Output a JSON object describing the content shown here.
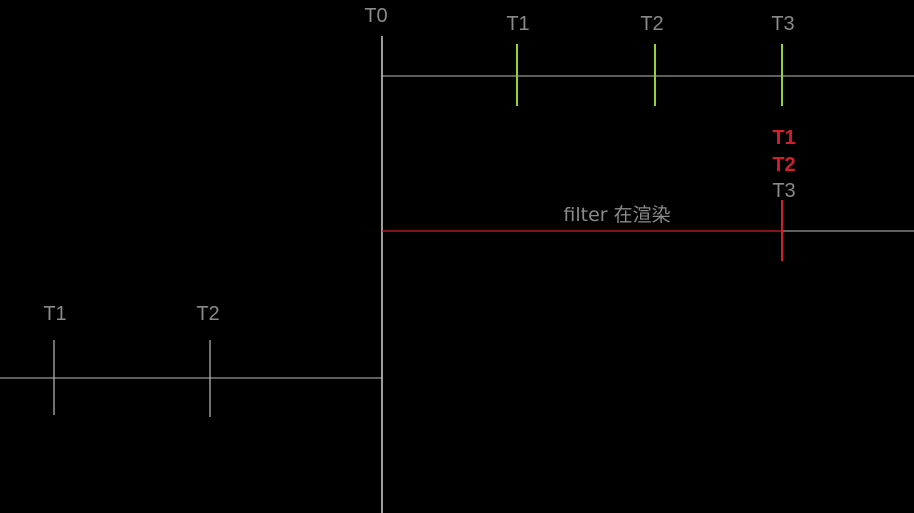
{
  "labels": {
    "t0": "T0",
    "top_t1": "T1",
    "top_t2": "T2",
    "top_t3": "T3",
    "mid_t1": "T1",
    "mid_t2": "T2",
    "mid_t3": "T3",
    "filter_caption": "filter 在渲染",
    "left_t1": "T1",
    "left_t2": "T2"
  },
  "colors": {
    "background": "#000000",
    "axis_line": "#bdbdbd",
    "label_gray": "#8a8a8a",
    "tick_green": "#8fd43a",
    "accent_red": "#d21f2e",
    "tick_gray": "#bdbdbd"
  }
}
